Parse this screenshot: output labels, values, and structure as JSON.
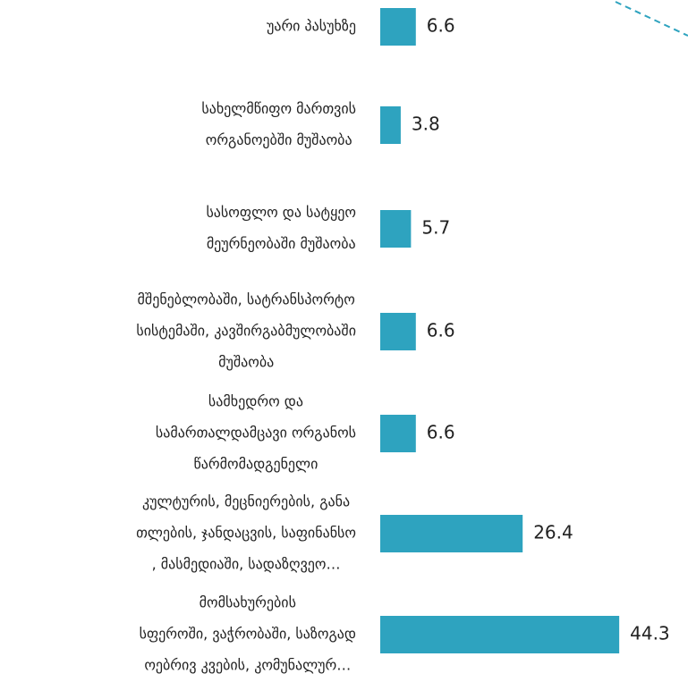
{
  "chart_data": {
    "type": "bar",
    "orientation": "horizontal",
    "categories": [
      [
        "უარი პასუხზე"
      ],
      [
        "სახელმწიფო მართვის",
        "ორგანოებში მუშაობა"
      ],
      [
        "სასოფლო და სატყეო",
        "მეურნეობაში მუშაობა"
      ],
      [
        "მშენებლობაში, სატრანსპორტო",
        "სისტემაში, კავშირგაბმულობაში",
        "მუშაობა"
      ],
      [
        "სამხედრო და",
        "სამართალდამცავი ორგანოს",
        "წარმომადგენელი"
      ],
      [
        "კულტურის, მეცნიერების, განა",
        "თლების, ჯანდაცვის, საფინანსო",
        ", მასმედიაში, სადაზღვეო…"
      ],
      [
        "მომსახურების",
        "სფეროში, ვაჭრობაში, საზოგად",
        "ოებრივ კვების, კომუნალურ…"
      ]
    ],
    "values": [
      6.6,
      3.8,
      5.7,
      6.6,
      6.6,
      26.4,
      44.3
    ],
    "color": "#2ea3bf"
  }
}
